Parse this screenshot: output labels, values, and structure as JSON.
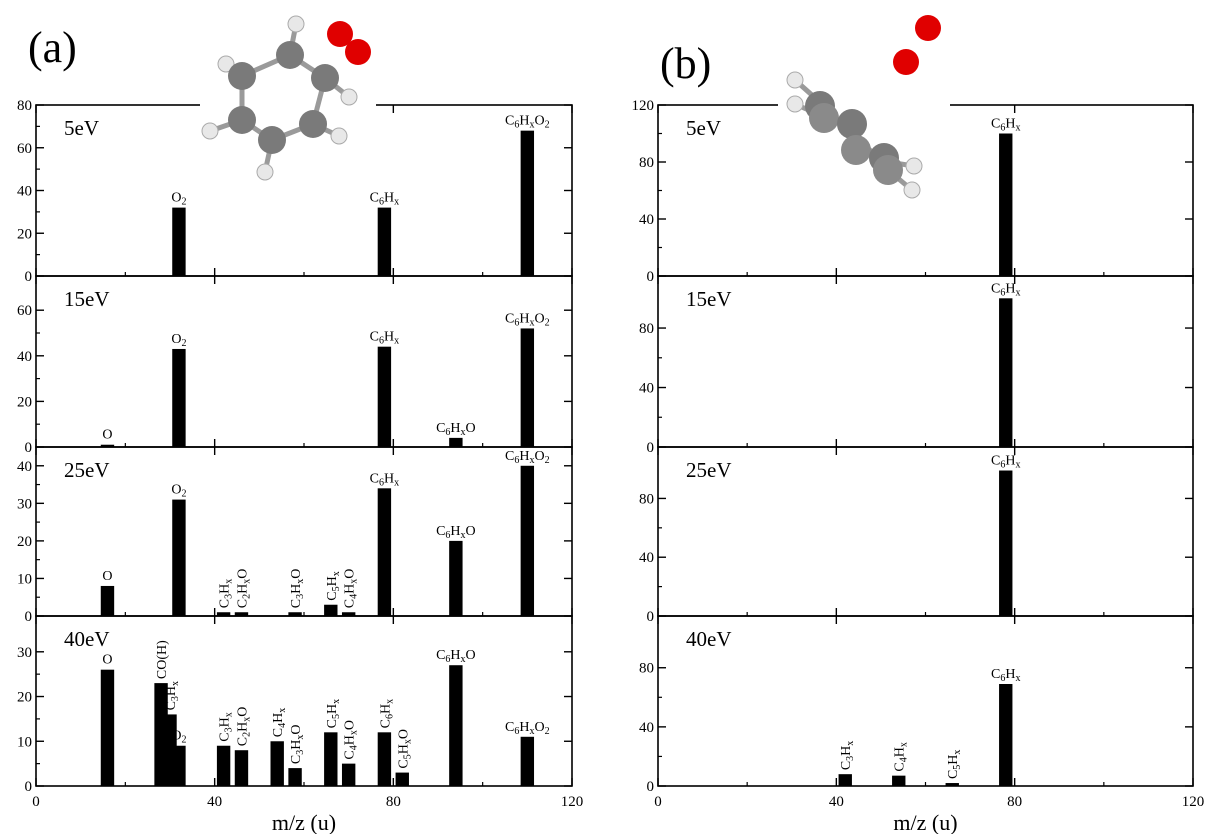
{
  "figure": {
    "panel_labels": [
      "(a)",
      "(b)"
    ]
  },
  "colors": {
    "bar": "#000000",
    "oxygen": "#e00000",
    "carbon": "#7a7a7a",
    "hydrogen": "#e8e8e8"
  },
  "chart_data": [
    {
      "type": "bar",
      "panel": "(a)",
      "xlabel": "m/z (u)",
      "xlim": [
        0,
        120
      ],
      "xticks": [
        0,
        40,
        80,
        120
      ],
      "grid": false,
      "subplots": [
        {
          "energy": "5eV",
          "ylim": [
            0,
            80
          ],
          "yticks": [
            0,
            20,
            40,
            60,
            80
          ],
          "bars": [
            {
              "x": 32,
              "y": 32,
              "label": "O_2"
            },
            {
              "x": 78,
              "y": 32,
              "label": "C_6H_x"
            },
            {
              "x": 110,
              "y": 68,
              "label": "C_6H_xO_2"
            }
          ]
        },
        {
          "energy": "15eV",
          "ylim": [
            0,
            75
          ],
          "yticks": [
            0,
            20,
            40,
            60
          ],
          "bars": [
            {
              "x": 16,
              "y": 1,
              "label": "O"
            },
            {
              "x": 32,
              "y": 43,
              "label": "O_2"
            },
            {
              "x": 78,
              "y": 44,
              "label": "C_6H_x"
            },
            {
              "x": 94,
              "y": 4,
              "label": "C_6H_xO"
            },
            {
              "x": 110,
              "y": 52,
              "label": "C_6H_xO_2"
            }
          ]
        },
        {
          "energy": "25eV",
          "ylim": [
            0,
            45
          ],
          "yticks": [
            0,
            10,
            20,
            30,
            40
          ],
          "bars": [
            {
              "x": 16,
              "y": 8,
              "label": "O"
            },
            {
              "x": 32,
              "y": 31,
              "label": "O_2"
            },
            {
              "x": 42,
              "y": 1,
              "label": "C_3H_x",
              "vertical": true
            },
            {
              "x": 46,
              "y": 1,
              "label": "C_2H_xO",
              "vertical": true
            },
            {
              "x": 58,
              "y": 1,
              "label": "C_3H_xO",
              "vertical": true
            },
            {
              "x": 66,
              "y": 3,
              "label": "C_5H_x",
              "vertical": true
            },
            {
              "x": 70,
              "y": 1,
              "label": "C_4H_xO",
              "vertical": true
            },
            {
              "x": 78,
              "y": 34,
              "label": "C_6H_x"
            },
            {
              "x": 94,
              "y": 20,
              "label": "C_6H_xO"
            },
            {
              "x": 110,
              "y": 40,
              "label": "C_6H_xO_2"
            }
          ]
        },
        {
          "energy": "40eV",
          "ylim": [
            0,
            38
          ],
          "yticks": [
            0,
            10,
            20,
            30
          ],
          "bars": [
            {
              "x": 16,
              "y": 26,
              "label": "O"
            },
            {
              "x": 28,
              "y": 23,
              "label": "CO(H)",
              "vertical": true
            },
            {
              "x": 30,
              "y": 16,
              "label": "C_3H_x",
              "vertical": true
            },
            {
              "x": 32,
              "y": 9,
              "label": "O_2"
            },
            {
              "x": 42,
              "y": 9,
              "label": "C_3H_x",
              "vertical": true
            },
            {
              "x": 46,
              "y": 8,
              "label": "C_2H_xO",
              "vertical": true
            },
            {
              "x": 54,
              "y": 10,
              "label": "C_4H_x",
              "vertical": true
            },
            {
              "x": 58,
              "y": 4,
              "label": "C_3H_xO",
              "vertical": true
            },
            {
              "x": 66,
              "y": 12,
              "label": "C_5H_x",
              "vertical": true
            },
            {
              "x": 70,
              "y": 5,
              "label": "C_4H_xO",
              "vertical": true
            },
            {
              "x": 78,
              "y": 12,
              "label": "C_6H_x",
              "vertical": true
            },
            {
              "x": 82,
              "y": 3,
              "label": "C_5H_xO",
              "vertical": true
            },
            {
              "x": 94,
              "y": 27,
              "label": "C_6H_xO"
            },
            {
              "x": 110,
              "y": 11,
              "label": "C_6H_xO_2"
            }
          ]
        }
      ]
    },
    {
      "type": "bar",
      "panel": "(b)",
      "xlabel": "m/z (u)",
      "xlim": [
        0,
        120
      ],
      "xticks": [
        0,
        40,
        80,
        120
      ],
      "grid": false,
      "subplots": [
        {
          "energy": "5eV",
          "ylim": [
            0,
            120
          ],
          "yticks": [
            0,
            40,
            80,
            120
          ],
          "bars": [
            {
              "x": 78,
              "y": 100,
              "label": "C_6H_x"
            }
          ]
        },
        {
          "energy": "15eV",
          "ylim": [
            0,
            115
          ],
          "yticks": [
            0,
            40,
            80
          ],
          "bars": [
            {
              "x": 78,
              "y": 100,
              "label": "C_6H_x"
            }
          ]
        },
        {
          "energy": "25eV",
          "ylim": [
            0,
            115
          ],
          "yticks": [
            0,
            40,
            80
          ],
          "bars": [
            {
              "x": 78,
              "y": 99,
              "label": "C_6H_x"
            }
          ]
        },
        {
          "energy": "40eV",
          "ylim": [
            0,
            115
          ],
          "yticks": [
            0,
            40,
            80
          ],
          "bars": [
            {
              "x": 42,
              "y": 8,
              "label": "C_3H_x",
              "vertical": true
            },
            {
              "x": 54,
              "y": 7,
              "label": "C_4H_x",
              "vertical": true
            },
            {
              "x": 66,
              "y": 2,
              "label": "C_5H_x",
              "vertical": true
            },
            {
              "x": 78,
              "y": 69,
              "label": "C_6H_x"
            }
          ]
        }
      ]
    }
  ]
}
